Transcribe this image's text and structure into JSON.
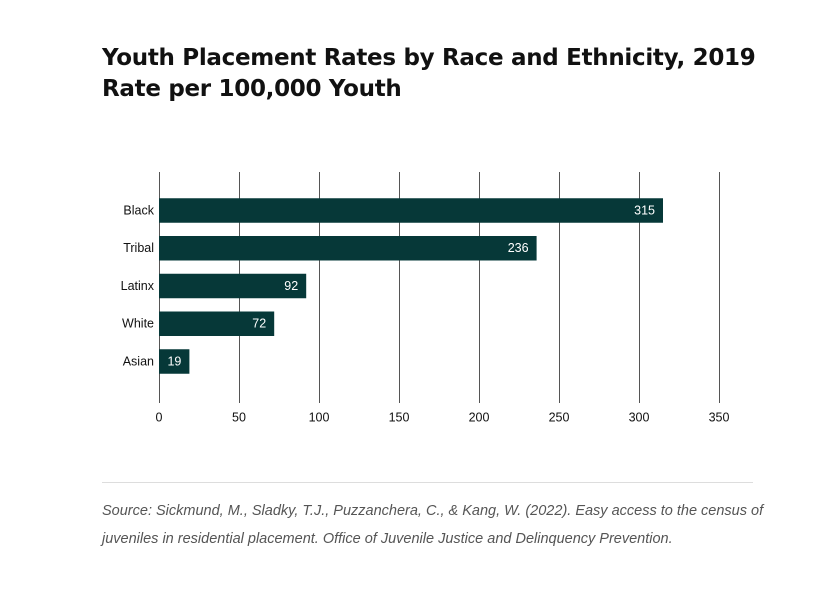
{
  "title_line1": "Youth Placement Rates by Race and Ethnicity, 2019",
  "title_line2": "Rate per 100,000 Youth",
  "source_line1": "Source: Sickmund, M., Sladky, T.J., Puzzanchera, C., & Kang, W. (2022). Easy access to the census of",
  "source_line2": "juveniles in residential placement. Office of Juvenile Justice and Delinquency Prevention.",
  "colors": {
    "bar": "#063838",
    "bar_label": "#ffffff",
    "grid": "#555555",
    "text": "#111111"
  },
  "chart_data": {
    "type": "bar",
    "orientation": "horizontal",
    "title": "Youth Placement Rates by Race and Ethnicity, 2019",
    "subtitle": "Rate per 100,000 Youth",
    "categories": [
      "Black",
      "Tribal",
      "Latinx",
      "White",
      "Asian"
    ],
    "values": [
      315,
      236,
      92,
      72,
      19
    ],
    "xlim": [
      0,
      350
    ],
    "xticks": [
      0,
      50,
      100,
      150,
      200,
      250,
      300,
      350
    ],
    "xlabel": "",
    "ylabel": "",
    "grid": true,
    "legend": "none"
  }
}
